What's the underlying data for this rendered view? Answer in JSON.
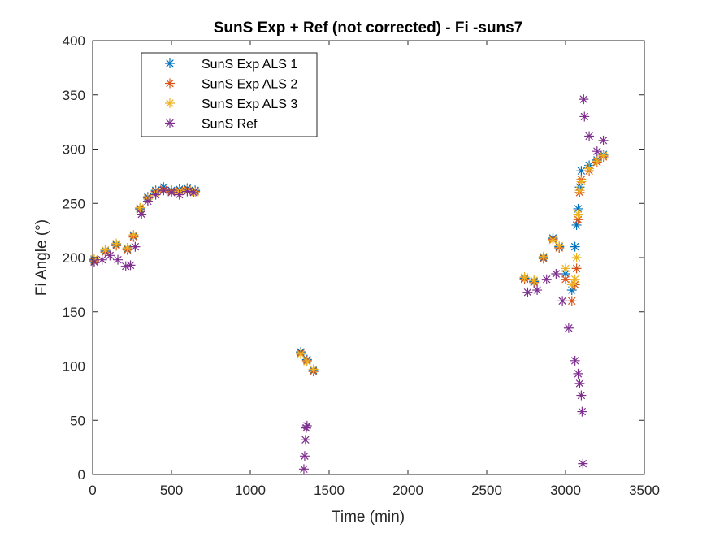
{
  "chart_data": {
    "type": "scatter",
    "title": "SunS Exp + Ref  (not corrected) - Fi -suns7",
    "xlabel": "Time (min)",
    "ylabel": "Fi Angle (°)",
    "xlim": [
      0,
      3500
    ],
    "ylim": [
      0,
      400
    ],
    "xticks": [
      0,
      500,
      1000,
      1500,
      2000,
      2500,
      3000,
      3500
    ],
    "yticks": [
      0,
      50,
      100,
      150,
      200,
      250,
      300,
      350,
      400
    ],
    "grid": false,
    "legend_position": "top-left",
    "marker": "*",
    "series": [
      {
        "name": "SunS Exp ALS 1",
        "color": "#0072BD",
        "x": [
          10,
          80,
          150,
          220,
          260,
          300,
          350,
          400,
          450,
          500,
          550,
          600,
          650,
          1320,
          1360,
          1400,
          2740,
          2800,
          2860,
          2920,
          2960,
          3000,
          3040,
          3060,
          3070,
          3080,
          3090,
          3100,
          3150,
          3200,
          3240
        ],
        "y": [
          198,
          206,
          212,
          208,
          220,
          245,
          256,
          262,
          265,
          262,
          263,
          264,
          262,
          113,
          106,
          96,
          181,
          178,
          200,
          218,
          210,
          185,
          170,
          210,
          230,
          245,
          265,
          280,
          285,
          290,
          295
        ]
      },
      {
        "name": "SunS Exp ALS 2",
        "color": "#D95319",
        "x": [
          10,
          80,
          150,
          220,
          260,
          300,
          350,
          400,
          450,
          500,
          550,
          600,
          650,
          1320,
          1360,
          1400,
          2740,
          2800,
          2860,
          2920,
          2960,
          3000,
          3040,
          3060,
          3070,
          3080,
          3090,
          3100,
          3150,
          3200,
          3240
        ],
        "y": [
          197,
          205,
          211,
          207,
          219,
          244,
          255,
          261,
          263,
          261,
          262,
          263,
          261,
          112,
          105,
          95,
          180,
          177,
          199,
          217,
          209,
          180,
          160,
          175,
          190,
          235,
          260,
          272,
          280,
          288,
          293
        ]
      },
      {
        "name": "SunS Exp ALS 3",
        "color": "#EDB120",
        "x": [
          10,
          80,
          150,
          220,
          260,
          300,
          350,
          400,
          450,
          500,
          550,
          600,
          650,
          1320,
          1360,
          1400,
          2740,
          2800,
          2860,
          2920,
          2960,
          3000,
          3040,
          3060,
          3070,
          3080,
          3090,
          3100,
          3150,
          3200,
          3240
        ],
        "y": [
          199,
          207,
          213,
          209,
          221,
          246,
          254,
          260,
          262,
          260,
          261,
          262,
          260,
          111,
          104,
          97,
          182,
          179,
          201,
          216,
          211,
          190,
          175,
          180,
          200,
          240,
          262,
          270,
          282,
          289,
          294
        ]
      },
      {
        "name": "SunS Ref",
        "color": "#7E2F8E",
        "x": [
          10,
          60,
          110,
          160,
          210,
          240,
          270,
          310,
          350,
          400,
          450,
          500,
          550,
          600,
          640,
          1340,
          1345,
          1350,
          1355,
          1360,
          2760,
          2820,
          2880,
          2940,
          2980,
          3020,
          3060,
          3080,
          3090,
          3100,
          3105,
          3110,
          3115,
          3120,
          3150,
          3200,
          3240
        ],
        "y": [
          196,
          198,
          202,
          198,
          192,
          193,
          210,
          240,
          252,
          258,
          262,
          260,
          258,
          261,
          260,
          5,
          17,
          32,
          43,
          45,
          168,
          170,
          180,
          185,
          160,
          135,
          105,
          93,
          84,
          73,
          58,
          10,
          346,
          330,
          312,
          298,
          308
        ]
      }
    ]
  }
}
